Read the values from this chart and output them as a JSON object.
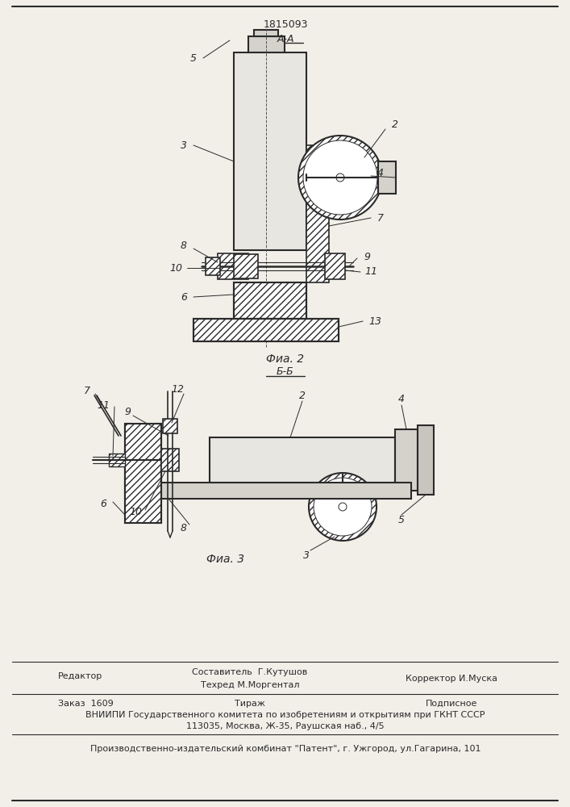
{
  "patent_number": "1815093",
  "bg_color": "#f2efe9",
  "line_color": "#2a2a2a",
  "fig2_caption": "Фиа. 2",
  "fig2_section": "А-А",
  "fig3_caption": "Фиа. 3",
  "fig3_section": "Б-Б",
  "footer": {
    "editor_label": "Редактор",
    "composer_label": "Составитель  Г.Кутушов",
    "techred_label": "Техред М.Моргентал",
    "corrector_label": "Корректор И.Муска",
    "order_label": "Заказ  1609",
    "tirazh_label": "Тираж",
    "podpisnoe_label": "Подписное",
    "vniip_line": "ВНИИПИ Государственного комитета по изобретениям и открытиям при ГКНТ СССР",
    "address_line": "113035, Москва, Ж-35, Раушская наб., 4/5",
    "production_line": "Производственно-издательский комбинат \"Патент\", г. Ужгород, ул.Гагарина, 101"
  }
}
